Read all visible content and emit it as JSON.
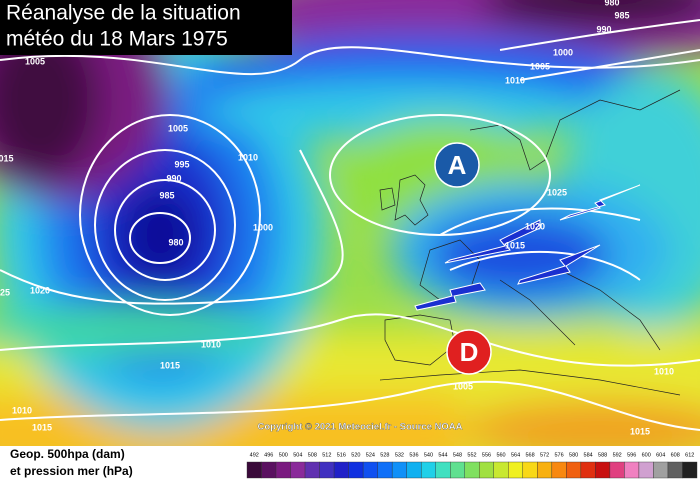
{
  "title": [
    "Réanalyse de la situation",
    "météo du 18 Mars 1975"
  ],
  "markers": [
    "A",
    "D"
  ],
  "isobar_labels": [
    "980",
    "985",
    "990",
    "1000",
    "1005",
    "1010",
    "1005",
    "1005",
    "1010",
    "995",
    "990",
    "985",
    "980",
    "1000",
    "015",
    "1020",
    "25",
    "1025",
    "1020",
    "1015",
    "1010",
    "1015",
    "1005",
    "1010",
    "1010",
    "1015",
    "1015"
  ],
  "copyright": "Copyright © 2021 Meteociel.fr - Source NOAA",
  "legend": {
    "title": [
      "Geop. 500hpa (dam)",
      "et pression mer (hPa)"
    ],
    "scale": [
      492,
      496,
      500,
      504,
      508,
      512,
      516,
      520,
      524,
      528,
      532,
      536,
      540,
      544,
      548,
      552,
      556,
      560,
      564,
      568,
      572,
      576,
      580,
      584,
      588,
      592,
      596,
      600,
      604,
      608,
      612
    ],
    "colors": [
      "#3a0a3a",
      "#5a1060",
      "#7a1a80",
      "#8a2a9a",
      "#6030b0",
      "#4030c0",
      "#2020c8",
      "#1030e0",
      "#1050f0",
      "#1070f8",
      "#1090f8",
      "#10b0f0",
      "#20d0e8",
      "#40e0c0",
      "#60e090",
      "#80e060",
      "#a0e040",
      "#c8e830",
      "#f0f020",
      "#f8d818",
      "#f8b010",
      "#f88810",
      "#f06010",
      "#e03010",
      "#c81010",
      "#e04080",
      "#f080c0",
      "#d0a0d0",
      "#a0a0a0",
      "#606060",
      "#202020"
    ]
  }
}
